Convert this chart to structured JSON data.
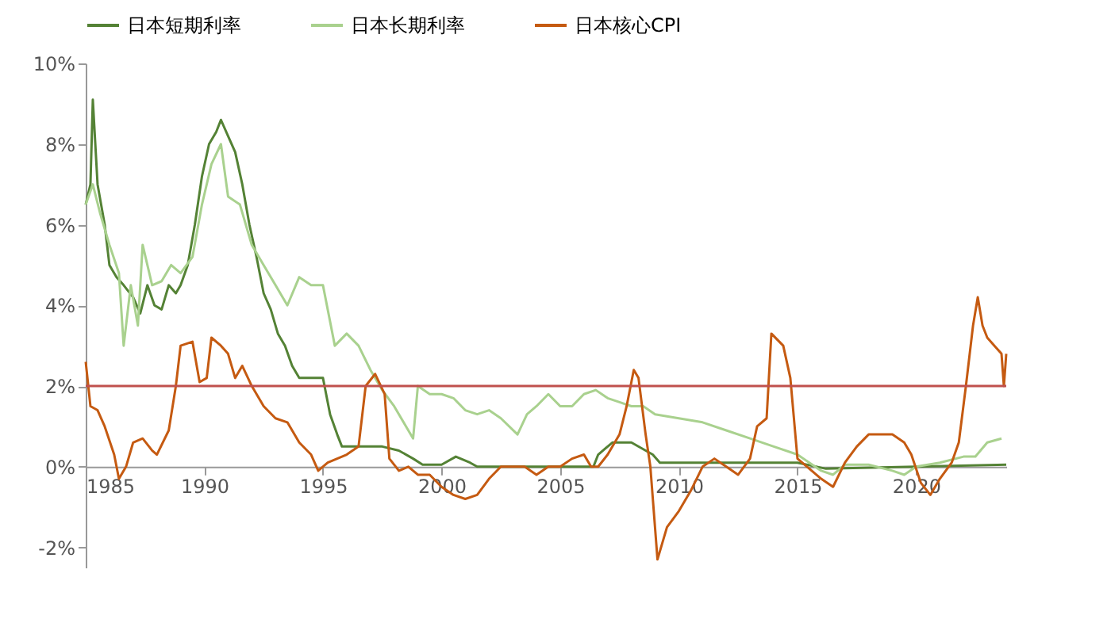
{
  "chart_data": {
    "type": "line",
    "legend": "top",
    "marker": "none",
    "line_style": "solid",
    "grid": false,
    "xlim": [
      1985,
      2023.8
    ],
    "xticks": [
      1985,
      1990,
      1995,
      2000,
      2005,
      2010,
      2015,
      2020
    ],
    "ylim": [
      -2.5,
      10
    ],
    "yticks": [
      {
        "value": -2,
        "label": "-2%"
      },
      {
        "value": 0,
        "label": "0%"
      },
      {
        "value": 2,
        "label": "2%"
      },
      {
        "value": 4,
        "label": "4%"
      },
      {
        "value": 6,
        "label": "6%"
      },
      {
        "value": 8,
        "label": "8%"
      },
      {
        "value": 10,
        "label": "10%"
      }
    ],
    "ref_lines": [
      {
        "axis": "y",
        "value": 2,
        "color": "#c0504d"
      }
    ],
    "series": [
      {
        "name": "日本短期利率",
        "color": "#548235",
        "x": [
          1985.0,
          1985.2,
          1985.3,
          1985.5,
          1985.8,
          1986.0,
          1986.3,
          1986.6,
          1987.0,
          1987.3,
          1987.6,
          1987.9,
          1988.2,
          1988.5,
          1988.8,
          1989.0,
          1989.3,
          1989.6,
          1989.9,
          1990.2,
          1990.5,
          1990.7,
          1991.0,
          1991.3,
          1991.6,
          1991.9,
          1992.2,
          1992.5,
          1992.8,
          1993.1,
          1993.4,
          1993.7,
          1994.0,
          1994.5,
          1995.0,
          1995.3,
          1995.6,
          1995.8,
          1996.5,
          1997.5,
          1998.2,
          1998.8,
          1999.2,
          2000.0,
          2000.6,
          2001.2,
          2001.5,
          2006.4,
          2006.6,
          2007.2,
          2008.0,
          2008.9,
          2009.2,
          2015.0,
          2016.2,
          2023.8
        ],
        "values": [
          6.5,
          7.0,
          9.1,
          7.0,
          6.0,
          5.0,
          4.7,
          4.5,
          4.2,
          3.8,
          4.5,
          4.0,
          3.9,
          4.5,
          4.3,
          4.5,
          5.0,
          6.0,
          7.2,
          8.0,
          8.3,
          8.6,
          8.2,
          7.8,
          7.0,
          6.0,
          5.2,
          4.3,
          3.9,
          3.3,
          3.0,
          2.5,
          2.2,
          2.2,
          2.2,
          1.3,
          0.8,
          0.5,
          0.5,
          0.5,
          0.4,
          0.2,
          0.05,
          0.05,
          0.25,
          0.1,
          0.0,
          0.0,
          0.3,
          0.6,
          0.6,
          0.3,
          0.1,
          0.1,
          -0.05,
          0.05
        ]
      },
      {
        "name": "日本长期利率",
        "color": "#a9d18e",
        "x": [
          1985.0,
          1985.3,
          1985.6,
          1986.0,
          1986.4,
          1986.6,
          1986.9,
          1987.2,
          1987.4,
          1987.8,
          1988.2,
          1988.6,
          1989.0,
          1989.5,
          1989.9,
          1990.3,
          1990.7,
          1991.0,
          1991.5,
          1992.0,
          1992.5,
          1993.0,
          1993.5,
          1994.0,
          1994.5,
          1995.0,
          1995.5,
          1996.0,
          1996.5,
          1997.0,
          1997.5,
          1998.0,
          1998.5,
          1998.8,
          1999.0,
          1999.5,
          2000.0,
          2000.5,
          2001.0,
          2001.5,
          2002.0,
          2002.5,
          2003.2,
          2003.6,
          2004.0,
          2004.5,
          2005.0,
          2005.5,
          2006.0,
          2006.5,
          2007.0,
          2007.5,
          2008.0,
          2008.5,
          2009.0,
          2010.0,
          2011.0,
          2012.0,
          2013.0,
          2014.0,
          2015.0,
          2016.0,
          2016.5,
          2017.0,
          2018.0,
          2019.0,
          2019.5,
          2020.0,
          2021.0,
          2022.0,
          2022.5,
          2023.0,
          2023.6
        ],
        "values": [
          6.5,
          7.0,
          6.3,
          5.5,
          4.8,
          3.0,
          4.5,
          3.5,
          5.5,
          4.5,
          4.6,
          5.0,
          4.8,
          5.2,
          6.5,
          7.5,
          8.0,
          6.7,
          6.5,
          5.5,
          5.0,
          4.5,
          4.0,
          4.7,
          4.5,
          4.5,
          3.0,
          3.3,
          3.0,
          2.4,
          1.9,
          1.5,
          1.0,
          0.7,
          2.0,
          1.8,
          1.8,
          1.7,
          1.4,
          1.3,
          1.4,
          1.2,
          0.8,
          1.3,
          1.5,
          1.8,
          1.5,
          1.5,
          1.8,
          1.9,
          1.7,
          1.6,
          1.5,
          1.5,
          1.3,
          1.2,
          1.1,
          0.9,
          0.7,
          0.5,
          0.3,
          -0.1,
          -0.2,
          0.05,
          0.05,
          -0.1,
          -0.2,
          0.0,
          0.1,
          0.25,
          0.25,
          0.6,
          0.7
        ]
      },
      {
        "name": "日本核心CPI",
        "color": "#c55a11",
        "x": [
          1985.0,
          1985.2,
          1985.5,
          1985.8,
          1986.2,
          1986.4,
          1986.7,
          1987.0,
          1987.4,
          1987.8,
          1988.0,
          1988.5,
          1988.8,
          1989.0,
          1989.5,
          1989.8,
          1990.1,
          1990.3,
          1990.7,
          1991.0,
          1991.3,
          1991.6,
          1992.0,
          1992.5,
          1993.0,
          1993.5,
          1994.0,
          1994.5,
          1994.8,
          1995.2,
          1995.6,
          1996.0,
          1996.5,
          1996.8,
          1997.2,
          1997.6,
          1997.8,
          1998.2,
          1998.6,
          1999.0,
          1999.5,
          2000.0,
          2000.5,
          2001.0,
          2001.5,
          2002.0,
          2002.5,
          2003.0,
          2003.5,
          2004.0,
          2004.5,
          2005.0,
          2005.5,
          2006.0,
          2006.3,
          2006.6,
          2007.0,
          2007.5,
          2007.8,
          2008.1,
          2008.3,
          2008.6,
          2008.8,
          2009.1,
          2009.5,
          2010.0,
          2010.5,
          2011.0,
          2011.5,
          2012.0,
          2012.5,
          2013.0,
          2013.3,
          2013.7,
          2013.9,
          2014.4,
          2014.7,
          2015.0,
          2015.6,
          2016.0,
          2016.5,
          2017.0,
          2017.5,
          2018.0,
          2018.5,
          2019.0,
          2019.5,
          2019.8,
          2020.2,
          2020.6,
          2021.0,
          2021.5,
          2021.8,
          2022.1,
          2022.4,
          2022.6,
          2022.8,
          2023.0,
          2023.3,
          2023.6,
          2023.7,
          2023.8
        ],
        "values": [
          2.6,
          1.5,
          1.4,
          1.0,
          0.3,
          -0.3,
          0.0,
          0.6,
          0.7,
          0.4,
          0.3,
          0.9,
          2.0,
          3.0,
          3.1,
          2.1,
          2.2,
          3.2,
          3.0,
          2.8,
          2.2,
          2.5,
          2.0,
          1.5,
          1.2,
          1.1,
          0.6,
          0.3,
          -0.1,
          0.1,
          0.2,
          0.3,
          0.5,
          2.0,
          2.3,
          1.8,
          0.2,
          -0.1,
          0.0,
          -0.2,
          -0.2,
          -0.5,
          -0.7,
          -0.8,
          -0.7,
          -0.3,
          0.0,
          0.0,
          0.0,
          -0.2,
          0.0,
          0.0,
          0.2,
          0.3,
          0.0,
          0.0,
          0.3,
          0.8,
          1.5,
          2.4,
          2.2,
          0.8,
          0.0,
          -2.3,
          -1.5,
          -1.1,
          -0.6,
          0.0,
          0.2,
          0.0,
          -0.2,
          0.2,
          1.0,
          1.2,
          3.3,
          3.0,
          2.2,
          0.2,
          -0.1,
          -0.3,
          -0.5,
          0.1,
          0.5,
          0.8,
          0.8,
          0.8,
          0.6,
          0.3,
          -0.4,
          -0.7,
          -0.3,
          0.1,
          0.6,
          2.0,
          3.5,
          4.2,
          3.5,
          3.2,
          3.0,
          2.8,
          2.0,
          2.8
        ]
      }
    ]
  }
}
